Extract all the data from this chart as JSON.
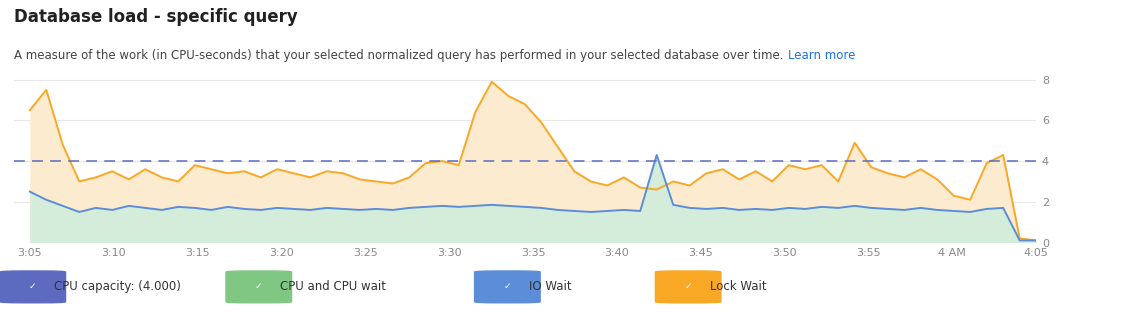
{
  "title": "Database load - specific query",
  "subtitle": "A measure of the work (in CPU-seconds) that your selected normalized query has performed in your selected database over time.",
  "subtitle_link": "Learn more",
  "cpu_capacity": 4.0,
  "ylim": [
    0,
    8.8
  ],
  "yticks": [
    0,
    2,
    4,
    6,
    8
  ],
  "background_color": "#ffffff",
  "time_labels": [
    "3:05",
    "3:10",
    "3:15",
    "3:20",
    "3:25",
    "3:30",
    "3:35",
    "3:40",
    "3:45",
    "3:50",
    "3:55",
    "4 AM",
    "4:05"
  ],
  "orange_line": [
    6.5,
    7.5,
    4.8,
    3.0,
    3.2,
    3.5,
    3.1,
    3.6,
    3.2,
    3.0,
    3.8,
    3.6,
    3.4,
    3.5,
    3.2,
    3.6,
    3.4,
    3.2,
    3.5,
    3.4,
    3.1,
    3.0,
    2.9,
    3.2,
    3.9,
    4.0,
    3.8,
    6.4,
    7.9,
    7.2,
    6.8,
    5.9,
    4.7,
    3.5,
    3.0,
    2.8,
    3.2,
    2.7,
    2.6,
    3.0,
    2.8,
    3.4,
    3.6,
    3.1,
    3.5,
    3.0,
    3.8,
    3.6,
    3.8,
    3.0,
    4.9,
    3.7,
    3.4,
    3.2,
    3.6,
    3.1,
    2.3,
    2.1,
    3.9,
    4.3,
    0.2,
    0.1
  ],
  "blue_line": [
    2.5,
    2.1,
    1.8,
    1.5,
    1.7,
    1.6,
    1.8,
    1.7,
    1.6,
    1.75,
    1.7,
    1.6,
    1.75,
    1.65,
    1.6,
    1.7,
    1.65,
    1.6,
    1.7,
    1.65,
    1.6,
    1.65,
    1.6,
    1.7,
    1.75,
    1.8,
    1.75,
    1.8,
    1.85,
    1.8,
    1.75,
    1.7,
    1.6,
    1.55,
    1.5,
    1.55,
    1.6,
    1.55,
    4.3,
    1.85,
    1.7,
    1.65,
    1.7,
    1.6,
    1.65,
    1.6,
    1.7,
    1.65,
    1.75,
    1.7,
    1.8,
    1.7,
    1.65,
    1.6,
    1.7,
    1.6,
    1.55,
    1.5,
    1.65,
    1.7,
    0.1,
    0.1
  ],
  "orange_color": "#f9a825",
  "blue_color": "#5b8dd9",
  "green_fill_color": "#d4edda",
  "orange_fill_color": "#fdebd0",
  "dashed_line_color": "#5c6bc0",
  "grid_color": "#e8e8e8",
  "legend_data": [
    {
      "label": "CPU capacity: (4.000)",
      "box_color": "#5c6bc0"
    },
    {
      "label": "CPU and CPU wait",
      "box_color": "#81c784"
    },
    {
      "label": "IO Wait",
      "box_color": "#5b8dd9"
    },
    {
      "label": "Lock Wait",
      "box_color": "#f9a825"
    }
  ]
}
